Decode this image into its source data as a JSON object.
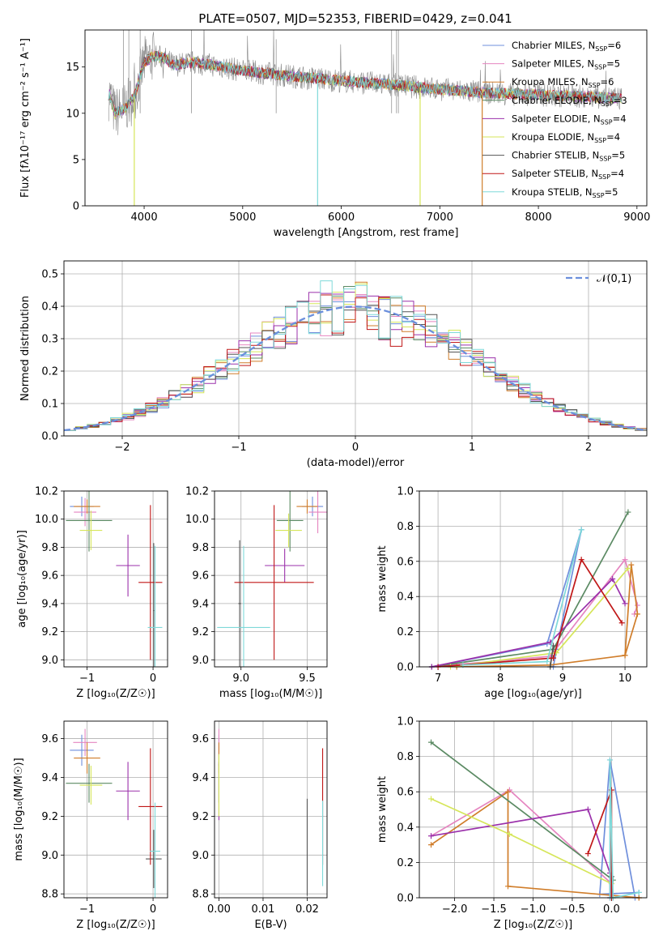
{
  "figure": {
    "title": "PLATE=0507, MJD=52353, FIBERID=0429, z=0.041"
  },
  "models": [
    {
      "name": "Chabrier MILES",
      "nssp": "6",
      "color": "#6f8fdc"
    },
    {
      "name": "Salpeter MILES",
      "nssp": "5",
      "color": "#e585c0"
    },
    {
      "name": "Kroupa MILES",
      "nssp": "6",
      "color": "#d07d2a"
    },
    {
      "name": "Chabrier ELODIE",
      "nssp": "3",
      "color": "#5b8a63"
    },
    {
      "name": "Salpeter ELODIE",
      "nssp": "4",
      "color": "#9b31ab"
    },
    {
      "name": "Kroupa ELODIE",
      "nssp": "4",
      "color": "#d6e65a"
    },
    {
      "name": "Chabrier STELIB",
      "nssp": "5",
      "color": "#555555"
    },
    {
      "name": "Salpeter STELIB",
      "nssp": "4",
      "color": "#c01717"
    },
    {
      "name": "Kroupa STELIB",
      "nssp": "5",
      "color": "#7fd9d9"
    }
  ],
  "chart_data": [
    {
      "id": "spectrum",
      "type": "line",
      "title": "PLATE=0507, MJD=52353, FIBERID=0429, z=0.041",
      "xlabel": "wavelength [Angstrom, rest frame]",
      "ylabel": "Flux [fλ10⁻¹⁷ erg cm⁻² s⁻¹ A⁻¹]",
      "xlim": [
        3400,
        9100
      ],
      "ylim": [
        0,
        19
      ],
      "xticks": [
        4000,
        5000,
        6000,
        7000,
        8000,
        9000
      ],
      "yticks": [
        0,
        5,
        10,
        15
      ],
      "data_color": "#888888",
      "continuum": {
        "x": [
          3650,
          3700,
          3800,
          3900,
          4000,
          4100,
          4200,
          4300,
          4500,
          4700,
          5000,
          5500,
          6000,
          6500,
          7000,
          7500,
          8000,
          8500,
          8850
        ],
        "y": [
          12.0,
          10.0,
          10.5,
          11.8,
          15.5,
          16.2,
          16.0,
          15.2,
          15.5,
          15.2,
          14.6,
          14.0,
          13.5,
          13.1,
          12.6,
          12.2,
          12.0,
          11.8,
          11.6
        ]
      },
      "drops": [
        {
          "x": 3900,
          "model": 5
        },
        {
          "x": 5760,
          "model": 8
        },
        {
          "x": 6800,
          "model": 5
        },
        {
          "x": 7430,
          "model": 2
        }
      ],
      "legend": "top-right"
    },
    {
      "id": "residuals",
      "type": "bar",
      "xlabel": "(data-model)/error",
      "ylabel": "Normed distribution",
      "xlim": [
        -2.5,
        2.5
      ],
      "ylim": [
        0,
        0.54
      ],
      "xticks": [
        -2,
        -1,
        0,
        1,
        2
      ],
      "yticks": [
        0.0,
        0.1,
        0.2,
        0.3,
        0.4,
        0.5
      ],
      "reference": {
        "name": "𝒩(0,1)",
        "color": "#6b8fdc"
      },
      "bin_width": 0.1,
      "series_count": 9,
      "legend": "top-right"
    },
    {
      "id": "age-vs-Z",
      "type": "scatter",
      "xlabel": "Z [log₁₀(Z/Z☉)]",
      "ylabel": "age  [log₁₀(age/yr)]",
      "xlim": [
        -1.35,
        0.22
      ],
      "ylim": [
        8.95,
        10.2
      ],
      "xticks": [
        -1,
        0
      ],
      "yticks": [
        9.0,
        9.2,
        9.4,
        9.6,
        9.8,
        10.0,
        10.2
      ],
      "points": [
        {
          "m": 0,
          "x": -1.08,
          "y": 10.09,
          "ex": 0.18,
          "ey": 0.07
        },
        {
          "m": 1,
          "x": -1.03,
          "y": 10.05,
          "ex": 0.17,
          "ey": 0.1
        },
        {
          "m": 2,
          "x": -1.0,
          "y": 10.09,
          "ex": 0.2,
          "ey": 0.05
        },
        {
          "m": 3,
          "x": -0.97,
          "y": 9.99,
          "ex": 0.35,
          "ey": 0.22
        },
        {
          "m": 4,
          "x": -0.38,
          "y": 9.67,
          "ex": 0.18,
          "ey": 0.22
        },
        {
          "m": 5,
          "x": -0.94,
          "y": 9.92,
          "ex": 0.17,
          "ey": 0.14
        },
        {
          "m": 6,
          "x": 0.01,
          "y": 9.35,
          "ex": 0.01,
          "ey": 0.48
        },
        {
          "m": 7,
          "x": -0.04,
          "y": 9.55,
          "ex": 0.18,
          "ey": 0.55
        },
        {
          "m": 8,
          "x": 0.03,
          "y": 9.23,
          "ex": 0.11,
          "ey": 0.58
        }
      ]
    },
    {
      "id": "age-vs-mass",
      "type": "scatter",
      "xlabel": "mass [log₁₀(M/M☉)]",
      "ylabel": "",
      "xlim": [
        8.8,
        9.65
      ],
      "ylim": [
        8.95,
        10.2
      ],
      "xticks": [
        9.0,
        9.5
      ],
      "yticks": [
        9.0,
        9.2,
        9.4,
        9.6,
        9.8,
        10.0,
        10.2
      ],
      "points": [
        {
          "m": 0,
          "x": 9.54,
          "y": 10.09,
          "ex": 0.08,
          "ey": 0.07
        },
        {
          "m": 1,
          "x": 9.58,
          "y": 10.05,
          "ex": 0.07,
          "ey": 0.15
        },
        {
          "m": 2,
          "x": 9.5,
          "y": 10.09,
          "ex": 0.08,
          "ey": 0.05
        },
        {
          "m": 3,
          "x": 9.37,
          "y": 9.99,
          "ex": 0.1,
          "ey": 0.22
        },
        {
          "m": 4,
          "x": 9.33,
          "y": 9.67,
          "ex": 0.15,
          "ey": 0.12
        },
        {
          "m": 5,
          "x": 9.36,
          "y": 9.92,
          "ex": 0.1,
          "ey": 0.12
        },
        {
          "m": 6,
          "x": 8.99,
          "y": 9.4,
          "ex": 0.01,
          "ey": 0.45
        },
        {
          "m": 7,
          "x": 9.25,
          "y": 9.55,
          "ex": 0.3,
          "ey": 0.55
        },
        {
          "m": 8,
          "x": 9.02,
          "y": 9.23,
          "ex": 0.2,
          "ey": 0.58
        }
      ]
    },
    {
      "id": "weight-vs-age",
      "type": "line",
      "xlabel": "age  [log₁₀(age/yr)]",
      "ylabel": "mass weight",
      "xlim": [
        6.7,
        10.35
      ],
      "ylim": [
        0,
        1.0
      ],
      "xticks": [
        7,
        8,
        9,
        10
      ],
      "yticks": [
        0.0,
        0.2,
        0.4,
        0.6,
        0.8,
        1.0
      ],
      "series": [
        {
          "m": 0,
          "x": [
            6.9,
            8.75,
            9.3,
            8.9,
            8.85
          ],
          "y": [
            0.0,
            0.13,
            0.78,
            0.1,
            0.0
          ]
        },
        {
          "m": 1,
          "x": [
            6.9,
            8.8,
            10.0,
            10.2,
            10.15
          ],
          "y": [
            0.0,
            0.06,
            0.61,
            0.35,
            0.3
          ]
        },
        {
          "m": 2,
          "x": [
            7.3,
            8.8,
            10.0,
            10.1,
            10.2,
            10.0
          ],
          "y": [
            0.0,
            0.01,
            0.065,
            0.58,
            0.3,
            0.065
          ]
        },
        {
          "m": 3,
          "x": [
            6.9,
            8.85,
            10.05
          ],
          "y": [
            0.0,
            0.1,
            0.88
          ]
        },
        {
          "m": 4,
          "x": [
            6.9,
            8.8,
            9.8,
            10.0
          ],
          "y": [
            0.0,
            0.14,
            0.5,
            0.36
          ]
        },
        {
          "m": 5,
          "x": [
            7.2,
            8.9,
            10.05
          ],
          "y": [
            0.0,
            0.08,
            0.56
          ]
        },
        {
          "m": 6,
          "x": [
            8.8,
            8.85
          ],
          "y": [
            0.0,
            0.12
          ]
        },
        {
          "m": 7,
          "x": [
            7.0,
            8.85,
            9.3,
            9.95
          ],
          "y": [
            0.0,
            0.05,
            0.61,
            0.25
          ]
        },
        {
          "m": 8,
          "x": [
            7.4,
            8.75,
            9.3
          ],
          "y": [
            0.01,
            0.03,
            0.78
          ]
        }
      ]
    },
    {
      "id": "mass-vs-Z",
      "type": "scatter",
      "xlabel": "Z [log₁₀(Z/Z☉)]",
      "ylabel": "mass [log₁₀(M/M☉)]",
      "xlim": [
        -1.35,
        0.22
      ],
      "ylim": [
        8.78,
        9.69
      ],
      "xticks": [
        -1,
        0
      ],
      "yticks": [
        8.8,
        9.0,
        9.2,
        9.4,
        9.6
      ],
      "points": [
        {
          "m": 0,
          "x": -1.08,
          "y": 9.54,
          "ex": 0.18,
          "ey": 0.08
        },
        {
          "m": 1,
          "x": -1.03,
          "y": 9.58,
          "ex": 0.18,
          "ey": 0.07
        },
        {
          "m": 2,
          "x": -1.0,
          "y": 9.5,
          "ex": 0.2,
          "ey": 0.08
        },
        {
          "m": 3,
          "x": -0.97,
          "y": 9.37,
          "ex": 0.35,
          "ey": 0.1
        },
        {
          "m": 4,
          "x": -0.38,
          "y": 9.33,
          "ex": 0.18,
          "ey": 0.15
        },
        {
          "m": 5,
          "x": -0.94,
          "y": 9.36,
          "ex": 0.17,
          "ey": 0.1
        },
        {
          "m": 6,
          "x": 0.01,
          "y": 8.98,
          "ex": 0.12,
          "ey": 0.15
        },
        {
          "m": 7,
          "x": -0.04,
          "y": 9.25,
          "ex": 0.18,
          "ey": 0.3
        },
        {
          "m": 8,
          "x": 0.03,
          "y": 9.02,
          "ex": 0.08,
          "ey": 0.25
        }
      ]
    },
    {
      "id": "mass-vs-ebv",
      "type": "scatter",
      "xlabel": "E(B-V)",
      "ylabel": "",
      "xlim": [
        -0.001,
        0.0245
      ],
      "ylim": [
        8.78,
        9.69
      ],
      "xticks": [
        0.0,
        0.01,
        0.02
      ],
      "yticks": [
        8.8,
        9.0,
        9.2,
        9.4,
        9.6
      ],
      "points": [
        {
          "m": 0,
          "x": 0.0,
          "y": 9.54,
          "ex": 0,
          "ey": 0.08
        },
        {
          "m": 1,
          "x": 0.0,
          "y": 9.58,
          "ex": 0,
          "ey": 0.07
        },
        {
          "m": 2,
          "x": 0.0,
          "y": 9.5,
          "ex": 0,
          "ey": 0.08
        },
        {
          "m": 3,
          "x": 0.0,
          "y": 9.37,
          "ex": 0,
          "ey": 0.1
        },
        {
          "m": 4,
          "x": 0.0,
          "y": 9.33,
          "ex": 0,
          "ey": 0.15
        },
        {
          "m": 5,
          "x": 0.0,
          "y": 9.36,
          "ex": 0,
          "ey": 0.16
        },
        {
          "m": 6,
          "x": 0.02,
          "y": 9.04,
          "ex": 0,
          "ey": 0.25
        },
        {
          "m": 7,
          "x": 0.0235,
          "y": 9.25,
          "ex": 0,
          "ey": 0.3
        },
        {
          "m": 8,
          "x": 0.0235,
          "y": 9.06,
          "ex": 0,
          "ey": 0.22
        }
      ]
    },
    {
      "id": "weight-vs-Z",
      "type": "line",
      "xlabel": "Z [log₁₀(Z/Z☉)]",
      "ylabel": "mass weight",
      "xlim": [
        -2.45,
        0.45
      ],
      "ylim": [
        0,
        1.0
      ],
      "xticks": [
        -2.0,
        -1.5,
        -1.0,
        -0.5,
        0.0
      ],
      "yticks": [
        0.0,
        0.2,
        0.4,
        0.6,
        0.8,
        1.0
      ],
      "series": [
        {
          "m": 0,
          "x": [
            0.3,
            -0.02,
            -0.15,
            0.35
          ],
          "y": [
            0.0,
            0.78,
            0.02,
            0.03
          ]
        },
        {
          "m": 1,
          "x": [
            -2.3,
            -1.3,
            0.0,
            -0.02
          ],
          "y": [
            0.35,
            0.61,
            0.08,
            0.0
          ]
        },
        {
          "m": 2,
          "x": [
            -2.3,
            -1.32,
            -1.32,
            0.35,
            0.35
          ],
          "y": [
            0.3,
            0.6,
            0.065,
            0.0,
            0.0
          ]
        },
        {
          "m": 3,
          "x": [
            -2.3,
            0.02
          ],
          "y": [
            0.88,
            0.1
          ]
        },
        {
          "m": 4,
          "x": [
            -2.3,
            -0.3,
            -0.02,
            -0.02
          ],
          "y": [
            0.35,
            0.5,
            0.14,
            0.0
          ]
        },
        {
          "m": 5,
          "x": [
            -2.3,
            -1.3,
            0.0
          ],
          "y": [
            0.56,
            0.36,
            0.08
          ]
        },
        {
          "m": 6,
          "x": [
            0.0,
            0.02
          ],
          "y": [
            0.12,
            0.0
          ]
        },
        {
          "m": 7,
          "x": [
            -0.3,
            0.0,
            0.0
          ],
          "y": [
            0.25,
            0.61,
            0.0
          ]
        },
        {
          "m": 8,
          "x": [
            -0.02,
            -0.02,
            0.02,
            0.35
          ],
          "y": [
            0.0,
            0.78,
            0.0,
            0.03
          ]
        }
      ]
    }
  ]
}
